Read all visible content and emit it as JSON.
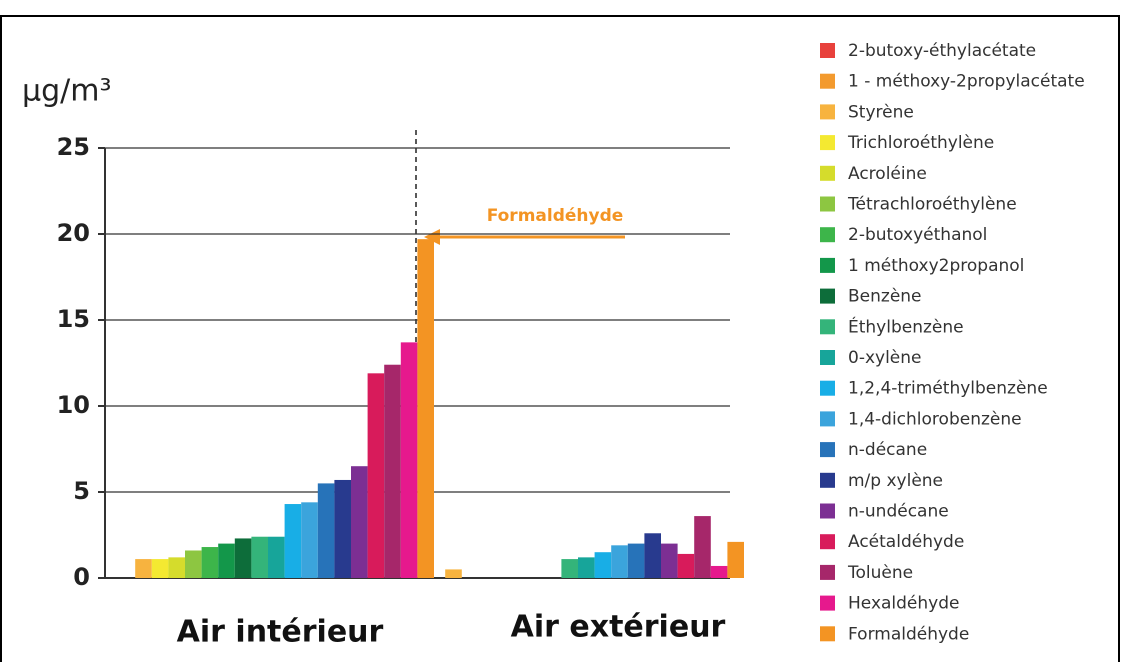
{
  "chart_data": {
    "type": "bar",
    "y_label": "µg/m³",
    "annotation": "Formaldéhyde",
    "categories": [
      "Air intérieur",
      "Air extérieur"
    ],
    "ylim": [
      0,
      25
    ],
    "yticks": [
      0,
      5,
      10,
      15,
      20,
      25
    ],
    "grid": true,
    "series": [
      {
        "name": "2-butoxy-éthylacétate",
        "color": "#e8413c",
        "values": [
          0,
          0
        ]
      },
      {
        "name": "1 - méthoxy-2propylacétate",
        "color": "#f39a2e",
        "values": [
          0,
          0
        ]
      },
      {
        "name": "Styrène",
        "color": "#f7b33f",
        "values": [
          1.1,
          0.5
        ]
      },
      {
        "name": "Trichloroéthylène",
        "color": "#f4e931",
        "values": [
          1.1,
          0
        ]
      },
      {
        "name": "Acroléine",
        "color": "#d5dc2c",
        "values": [
          1.2,
          0
        ]
      },
      {
        "name": "Tétrachloroéthylène",
        "color": "#8dc641",
        "values": [
          1.6,
          0
        ]
      },
      {
        "name": "2-butoxyéthanol",
        "color": "#3db54a",
        "values": [
          1.8,
          0
        ]
      },
      {
        "name": "1 méthoxy2propanol",
        "color": "#13974a",
        "values": [
          2.0,
          0
        ]
      },
      {
        "name": "Benzène",
        "color": "#0d6d3a",
        "values": [
          2.3,
          0
        ]
      },
      {
        "name": "Éthylbenzène",
        "color": "#34b47a",
        "values": [
          2.4,
          1.1
        ]
      },
      {
        "name": "0-xylène",
        "color": "#17a59a",
        "values": [
          2.4,
          1.2
        ]
      },
      {
        "name": "1,2,4-triméthylbenzène",
        "color": "#18aee6",
        "values": [
          4.3,
          1.5
        ]
      },
      {
        "name": "1,4-dichlorobenzène",
        "color": "#3ba4dc",
        "values": [
          4.4,
          1.9
        ]
      },
      {
        "name": "n-décane",
        "color": "#2773b9",
        "values": [
          5.5,
          2.0
        ]
      },
      {
        "name": "m/p xylène",
        "color": "#283a8e",
        "values": [
          5.7,
          2.6
        ]
      },
      {
        "name": "n-undécane",
        "color": "#7c2f93",
        "values": [
          6.5,
          2.0
        ]
      },
      {
        "name": "Acétaldéhyde",
        "color": "#d81b5b",
        "values": [
          11.9,
          1.4
        ]
      },
      {
        "name": "Toluène",
        "color": "#a6276a",
        "values": [
          12.4,
          3.6
        ]
      },
      {
        "name": "Hexaldéhyde",
        "color": "#e6198d",
        "values": [
          13.7,
          0.7
        ]
      },
      {
        "name": "Formaldéhyde",
        "color": "#f39423",
        "values": [
          19.7,
          2.1
        ]
      }
    ]
  }
}
